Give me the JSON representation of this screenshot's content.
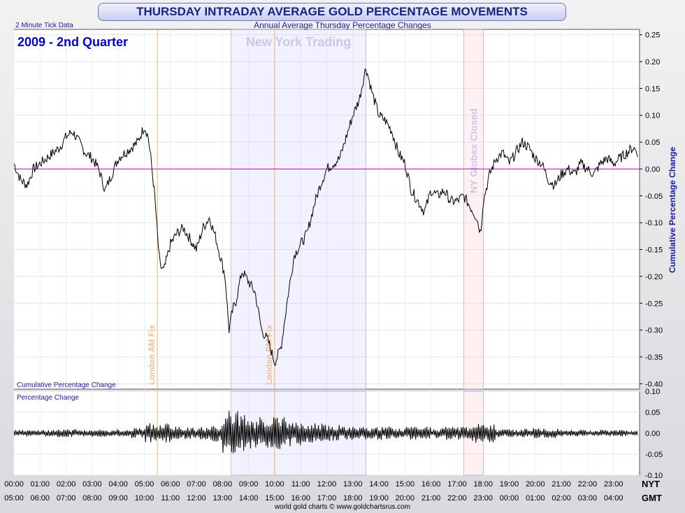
{
  "header": {
    "title": "THURSDAY INTRADAY AVERAGE GOLD PERCENTAGE MOVEMENTS",
    "subtitle": "Annual Average Thursday Percentage Changes",
    "tick_note": "2 Minute Tick Data",
    "period": "2009 - 2nd Quarter",
    "credit": "world gold charts © www.goldchartsrus.com"
  },
  "chart_data": [
    {
      "type": "line",
      "title": "Cumulative Percentage Change",
      "ylabel": "Cumulative Percentage Change",
      "ylim": [
        -0.41,
        0.26
      ],
      "yticks": [
        "0.25",
        "0.20",
        "0.15",
        "0.10",
        "0.05",
        "0.00",
        "-0.05",
        "-0.10",
        "-0.15",
        "-0.20",
        "-0.25",
        "-0.30",
        "-0.35",
        "-0.40"
      ],
      "x_nyt": [
        "00:00",
        "01:00",
        "02:00",
        "03:00",
        "04:00",
        "05:00",
        "06:00",
        "07:00",
        "08:00",
        "09:00",
        "10:00",
        "11:00",
        "12:00",
        "13:00",
        "14:00",
        "15:00",
        "16:00",
        "17:00",
        "18:00",
        "19:00",
        "20:00",
        "21:00",
        "22:00",
        "23:00"
      ],
      "x_gmt": [
        "05:00",
        "06:00",
        "07:00",
        "08:00",
        "09:00",
        "10:00",
        "11:00",
        "12:00",
        "13:00",
        "14:00",
        "15:00",
        "16:00",
        "17:00",
        "18:00",
        "19:00",
        "20:00",
        "21:00",
        "22:00",
        "23:00",
        "00:00",
        "01:00",
        "02:00",
        "03:00",
        "04:00"
      ],
      "timezone_nyt": "NYT",
      "timezone_gmt": "GMT",
      "series": [
        {
          "x_hours": [
            0,
            0.25,
            0.5,
            0.75,
            1,
            1.25,
            1.5,
            1.75,
            2,
            2.25,
            2.5,
            2.75,
            3,
            3.25,
            3.5,
            3.75,
            4,
            4.25,
            4.5,
            4.75,
            5,
            5.15,
            5.25,
            5.4,
            5.5,
            5.6,
            5.75,
            6,
            6.25,
            6.5,
            6.75,
            7,
            7.25,
            7.5,
            7.75,
            8,
            8.1,
            8.25,
            8.4,
            8.5,
            8.75,
            9,
            9.25,
            9.5,
            9.75,
            10,
            10.1,
            10.25,
            10.5,
            10.75,
            11,
            11.25,
            11.5,
            11.75,
            12,
            12.25,
            12.5,
            12.75,
            13,
            13.25,
            13.5,
            13.75,
            14,
            14.25,
            14.5,
            14.75,
            15,
            15.25,
            15.5,
            15.75,
            16,
            16.25,
            16.5,
            16.75,
            17,
            17.25,
            17.5,
            17.75,
            17.9,
            18,
            18.25,
            18.5,
            18.75,
            19,
            19.25,
            19.5,
            19.75,
            20,
            20.25,
            20.5,
            20.75,
            21,
            21.25,
            21.5,
            21.75,
            22,
            22.25,
            22.5,
            22.75,
            23,
            23.25,
            23.5,
            23.75,
            23.95
          ],
          "values": [
            0.01,
            -0.02,
            -0.03,
            0.0,
            0.01,
            0.02,
            0.03,
            0.04,
            0.06,
            0.07,
            0.05,
            0.03,
            0.02,
            0.0,
            -0.04,
            -0.01,
            0.02,
            0.03,
            0.04,
            0.05,
            0.08,
            0.06,
            0.02,
            -0.05,
            -0.12,
            -0.18,
            -0.19,
            -0.14,
            -0.12,
            -0.11,
            -0.13,
            -0.15,
            -0.11,
            -0.09,
            -0.13,
            -0.18,
            -0.2,
            -0.3,
            -0.26,
            -0.25,
            -0.19,
            -0.21,
            -0.23,
            -0.3,
            -0.32,
            -0.36,
            -0.35,
            -0.33,
            -0.24,
            -0.16,
            -0.14,
            -0.12,
            -0.07,
            -0.03,
            0.0,
            0.01,
            0.02,
            0.06,
            0.1,
            0.13,
            0.19,
            0.14,
            0.1,
            0.09,
            0.07,
            0.03,
            0.01,
            -0.04,
            -0.06,
            -0.08,
            -0.04,
            -0.05,
            -0.04,
            -0.06,
            -0.06,
            -0.05,
            -0.07,
            -0.09,
            -0.12,
            -0.06,
            -0.01,
            0.02,
            0.03,
            0.01,
            0.03,
            0.05,
            0.04,
            0.02,
            0.01,
            -0.02,
            -0.03,
            -0.01,
            0.0,
            -0.01,
            0.01,
            0.0,
            -0.01,
            0.01,
            0.02,
            0.01,
            0.02,
            0.03,
            0.04,
            0.03
          ]
        }
      ],
      "shaded_regions": [
        {
          "label": "New York Trading",
          "from_hour": 8.33,
          "to_hour": 13.5
        },
        {
          "label": "NY Globex Closed",
          "from_hour": 17.25,
          "to_hour": 18.0
        }
      ],
      "markers": [
        {
          "label": "London AM Fix",
          "hour": 5.5
        },
        {
          "label": "London PM Fix",
          "hour": 10.0
        }
      ]
    },
    {
      "type": "line",
      "title": "Percentage Change",
      "ylim": [
        -0.1,
        0.1
      ],
      "yticks": [
        "0.10",
        "0.05",
        "0.00",
        "-0.05",
        "-0.10"
      ],
      "series": [
        {
          "x_hours": [
            0,
            0.5,
            1,
            1.5,
            2,
            2.5,
            3,
            3.5,
            4,
            4.5,
            5,
            5.5,
            6,
            6.5,
            7,
            7.5,
            8,
            8.5,
            8.75,
            9,
            9.5,
            10,
            10.5,
            11,
            11.5,
            12,
            12.5,
            13,
            13.5,
            14,
            14.5,
            15,
            15.5,
            16,
            16.5,
            17,
            17.5,
            18,
            18.5,
            19,
            19.5,
            20,
            20.5,
            21,
            21.5,
            22,
            22.5,
            23,
            23.5,
            23.95
          ],
          "values": [
            0.005,
            -0.01,
            0.01,
            -0.008,
            0.012,
            -0.01,
            0.008,
            -0.012,
            0.01,
            -0.01,
            0.015,
            -0.03,
            0.02,
            -0.015,
            0.018,
            -0.02,
            0.025,
            -0.07,
            0.06,
            -0.04,
            0.05,
            -0.05,
            0.04,
            -0.03,
            0.03,
            -0.025,
            0.02,
            -0.02,
            0.015,
            -0.02,
            0.015,
            -0.015,
            0.02,
            -0.015,
            0.012,
            -0.02,
            0.015,
            0.03,
            -0.01,
            0.012,
            -0.01,
            0.015,
            -0.015,
            0.01,
            -0.01,
            0.008,
            -0.008,
            0.01,
            -0.006,
            0.005
          ]
        }
      ]
    }
  ]
}
